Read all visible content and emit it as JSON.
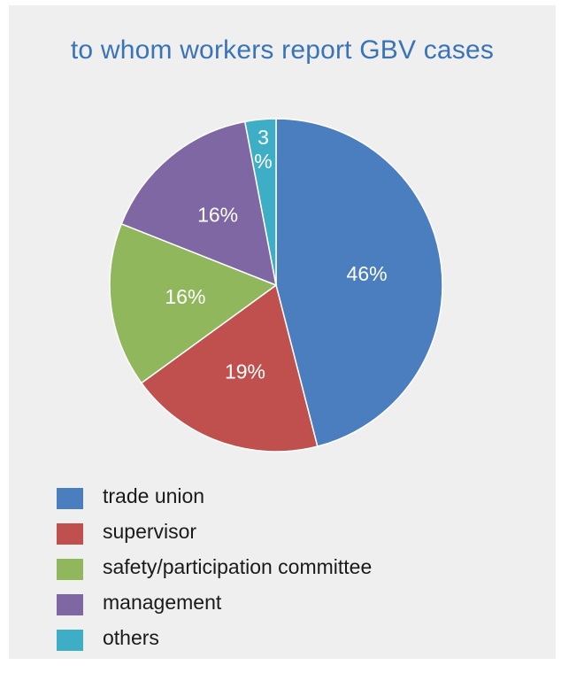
{
  "title": "to whom workers report GBV cases",
  "chart_data": {
    "type": "pie",
    "title": "to whom workers report GBV cases",
    "categories": [
      "trade union",
      "supervisor",
      "safety/participation committee",
      "management",
      "others"
    ],
    "values": [
      46,
      19,
      16,
      16,
      3
    ],
    "unit": "%",
    "data_labels": [
      "46%",
      "19%",
      "16%",
      "16%",
      "3\n%"
    ],
    "colors": [
      "#4a7ebf",
      "#c0504d",
      "#90b75c",
      "#7f67a3",
      "#3eaec6"
    ],
    "legend_position": "bottom-left"
  }
}
